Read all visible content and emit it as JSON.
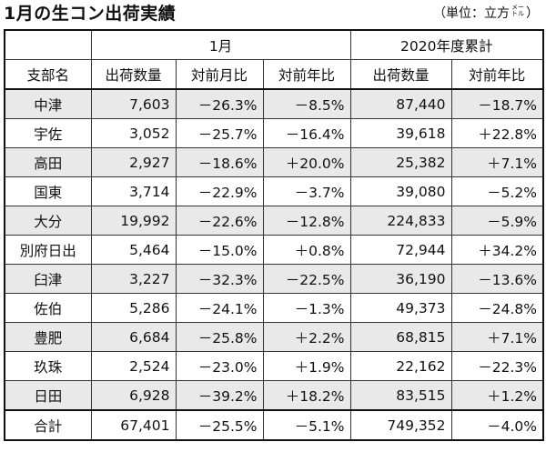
{
  "title": "1月の生コン出荷実績",
  "unit_label": "（単位：立方",
  "unit_small": "メートル",
  "unit_close": "）",
  "header": {
    "group_month": "1月",
    "group_cumulative": "2020年度累計",
    "col_branch": "支部名",
    "col_month_volume": "出荷数量",
    "col_month_mom": "対前月比",
    "col_month_yoy": "対前年比",
    "col_cum_volume": "出荷数量",
    "col_cum_yoy": "対前年比"
  },
  "rows": [
    {
      "name": "中津",
      "vol": "7,603",
      "mom": "－26.3%",
      "yoy": "－8.5%",
      "cum": "87,440",
      "cum_yoy": "－18.7%"
    },
    {
      "name": "宇佐",
      "vol": "3,052",
      "mom": "－25.7%",
      "yoy": "－16.4%",
      "cum": "39,618",
      "cum_yoy": "＋22.8%"
    },
    {
      "name": "高田",
      "vol": "2,927",
      "mom": "－18.6%",
      "yoy": "＋20.0%",
      "cum": "25,382",
      "cum_yoy": "＋7.1%"
    },
    {
      "name": "国東",
      "vol": "3,714",
      "mom": "－22.9%",
      "yoy": "－3.7%",
      "cum": "39,080",
      "cum_yoy": "－5.2%"
    },
    {
      "name": "大分",
      "vol": "19,992",
      "mom": "－22.6%",
      "yoy": "－12.8%",
      "cum": "224,833",
      "cum_yoy": "－5.9%"
    },
    {
      "name": "別府日出",
      "vol": "5,464",
      "mom": "－15.0%",
      "yoy": "＋0.8%",
      "cum": "72,944",
      "cum_yoy": "＋34.2%"
    },
    {
      "name": "臼津",
      "vol": "3,227",
      "mom": "－32.3%",
      "yoy": "－22.5%",
      "cum": "36,190",
      "cum_yoy": "－13.6%"
    },
    {
      "name": "佐伯",
      "vol": "5,286",
      "mom": "－24.1%",
      "yoy": "－1.3%",
      "cum": "49,373",
      "cum_yoy": "－24.8%"
    },
    {
      "name": "豊肥",
      "vol": "6,684",
      "mom": "－25.8%",
      "yoy": "＋2.2%",
      "cum": "68,815",
      "cum_yoy": "＋7.1%"
    },
    {
      "name": "玖珠",
      "vol": "2,524",
      "mom": "－23.0%",
      "yoy": "＋1.9%",
      "cum": "22,162",
      "cum_yoy": "－22.3%"
    },
    {
      "name": "日田",
      "vol": "6,928",
      "mom": "－39.2%",
      "yoy": "＋18.2%",
      "cum": "83,515",
      "cum_yoy": "＋1.2%"
    }
  ],
  "total": {
    "name": "合計",
    "vol": "67,401",
    "mom": "－25.5%",
    "yoy": "－5.1%",
    "cum": "749,352",
    "cum_yoy": "－4.0%"
  },
  "colors": {
    "shade": "#e9e9e9",
    "border": "#333333"
  }
}
